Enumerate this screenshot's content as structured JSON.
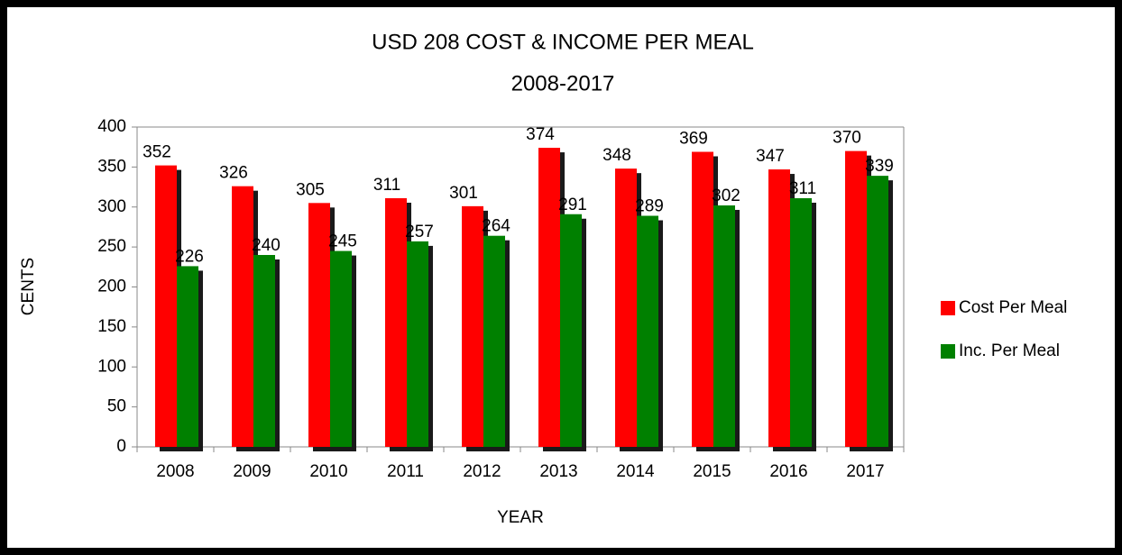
{
  "chart_data": {
    "type": "bar",
    "title": "USD 208 COST & INCOME PER MEAL",
    "subtitle": "2008-2017",
    "x_label": "YEAR",
    "y_label": "CENTS",
    "categories": [
      "2008",
      "2009",
      "2010",
      "2011",
      "2012",
      "2013",
      "2014",
      "2015",
      "2016",
      "2017"
    ],
    "series": [
      {
        "name": "Cost Per Meal",
        "color": "#ff0000",
        "values": [
          352,
          326,
          305,
          311,
          301,
          374,
          348,
          369,
          347,
          370
        ]
      },
      {
        "name": "Inc. Per Meal",
        "color": "#008000",
        "values": [
          226,
          240,
          245,
          257,
          264,
          291,
          289,
          302,
          311,
          339
        ]
      }
    ],
    "ylim": [
      0,
      400
    ],
    "yticks": [
      0,
      50,
      100,
      150,
      200,
      250,
      300,
      350,
      400
    ],
    "grid": false,
    "legend": "right"
  }
}
